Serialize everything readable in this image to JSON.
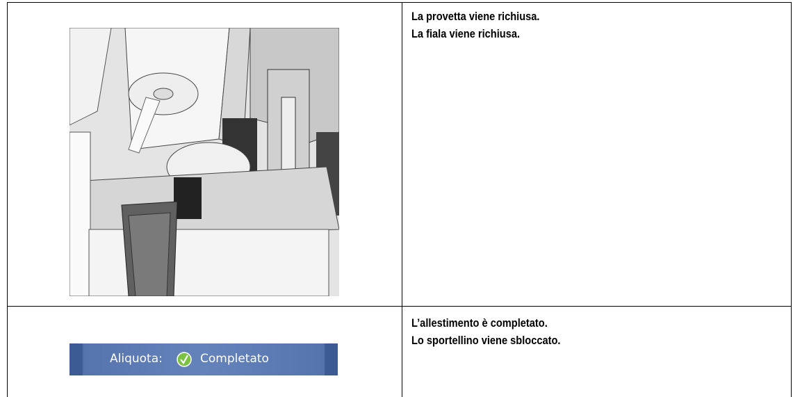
{
  "table": {
    "rows": [
      {
        "text": [
          "La provetta viene richiusa.",
          "La fiala viene richiusa."
        ]
      },
      {
        "status": {
          "label": "Aliquota:",
          "value": "Completato"
        },
        "text": [
          "L’allestimento è completato.",
          "Lo sportellino viene sbloccato."
        ]
      }
    ]
  }
}
